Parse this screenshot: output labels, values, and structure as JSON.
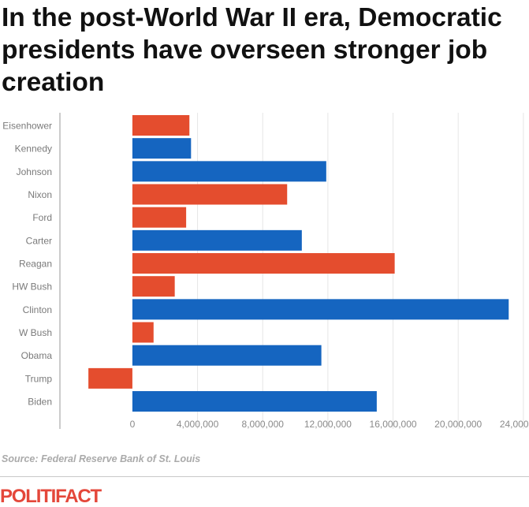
{
  "title": "In the post-World War II era, Democratic presidents have overseen stronger job creation",
  "source": "Source: Federal Reserve Bank of St. Louis",
  "logo": "POLITIFACT",
  "colors": {
    "democrat": "#1565c0",
    "republican": "#e44d2e"
  },
  "chart_data": {
    "type": "bar",
    "orientation": "horizontal",
    "title": "In the post-World War II era, Democratic presidents have overseen stronger job creation",
    "xlabel": "",
    "ylabel": "",
    "categories": [
      "Eisenhower",
      "Kennedy",
      "Johnson",
      "Nixon",
      "Ford",
      "Carter",
      "Reagan",
      "HW Bush",
      "Clinton",
      "W Bush",
      "Obama",
      "Trump",
      "Biden"
    ],
    "values": [
      3500000,
      3600000,
      11900000,
      9500000,
      3300000,
      10400000,
      16100000,
      2600000,
      23100000,
      1300000,
      11600000,
      -2700000,
      15000000
    ],
    "party": [
      "R",
      "D",
      "D",
      "R",
      "R",
      "D",
      "R",
      "R",
      "D",
      "R",
      "D",
      "R",
      "D"
    ],
    "xtick_labels": [
      "0",
      "4,000,000",
      "8,000,000",
      "12,000,000",
      "16,000,000",
      "20,000,000",
      "24,000,000"
    ],
    "xticks": [
      0,
      4000000,
      8000000,
      12000000,
      16000000,
      20000000,
      24000000
    ],
    "xlim": [
      -4400000,
      24200000
    ],
    "grid": true,
    "legend": "none"
  }
}
